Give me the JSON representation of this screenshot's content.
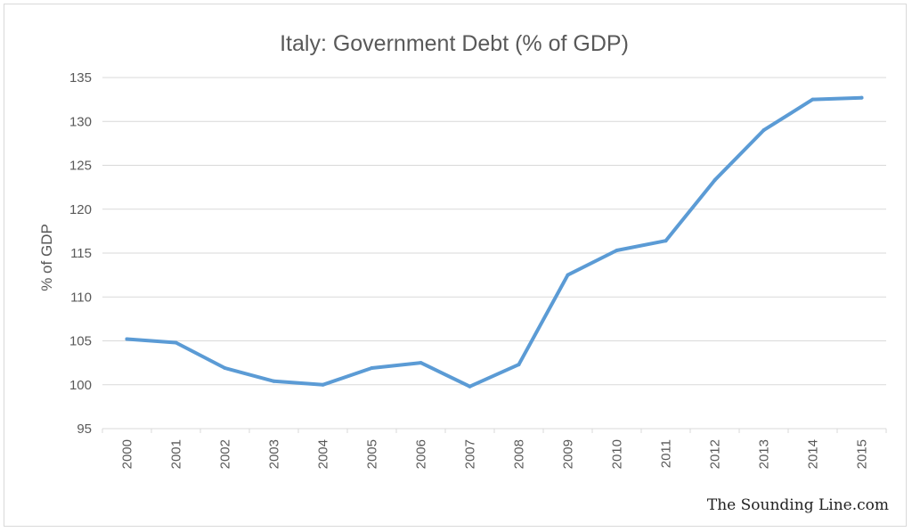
{
  "chart_data": {
    "type": "line",
    "title": "Italy: Government Debt (% of GDP)",
    "xlabel": "",
    "ylabel": "% of GDP",
    "categories": [
      "2000",
      "2001",
      "2002",
      "2003",
      "2004",
      "2005",
      "2006",
      "2007",
      "2008",
      "2009",
      "2010",
      "2011",
      "2012",
      "2013",
      "2014",
      "2015"
    ],
    "series": [
      {
        "values": [
          105.2,
          104.8,
          101.9,
          100.4,
          100.0,
          101.9,
          102.5,
          99.8,
          102.3,
          112.5,
          115.3,
          116.4,
          123.3,
          129.0,
          132.5,
          132.7
        ],
        "color": "#5b9bd5"
      }
    ],
    "ylim": [
      95,
      135
    ],
    "yticks": [
      "95",
      "100",
      "105",
      "110",
      "115",
      "120",
      "125",
      "130",
      "135"
    ],
    "grid": true,
    "legend": "none"
  },
  "watermark": "The Sounding Line.com",
  "colors": {
    "line": "#5b9bd5",
    "grid": "#d9d9d9",
    "text": "#595959"
  }
}
